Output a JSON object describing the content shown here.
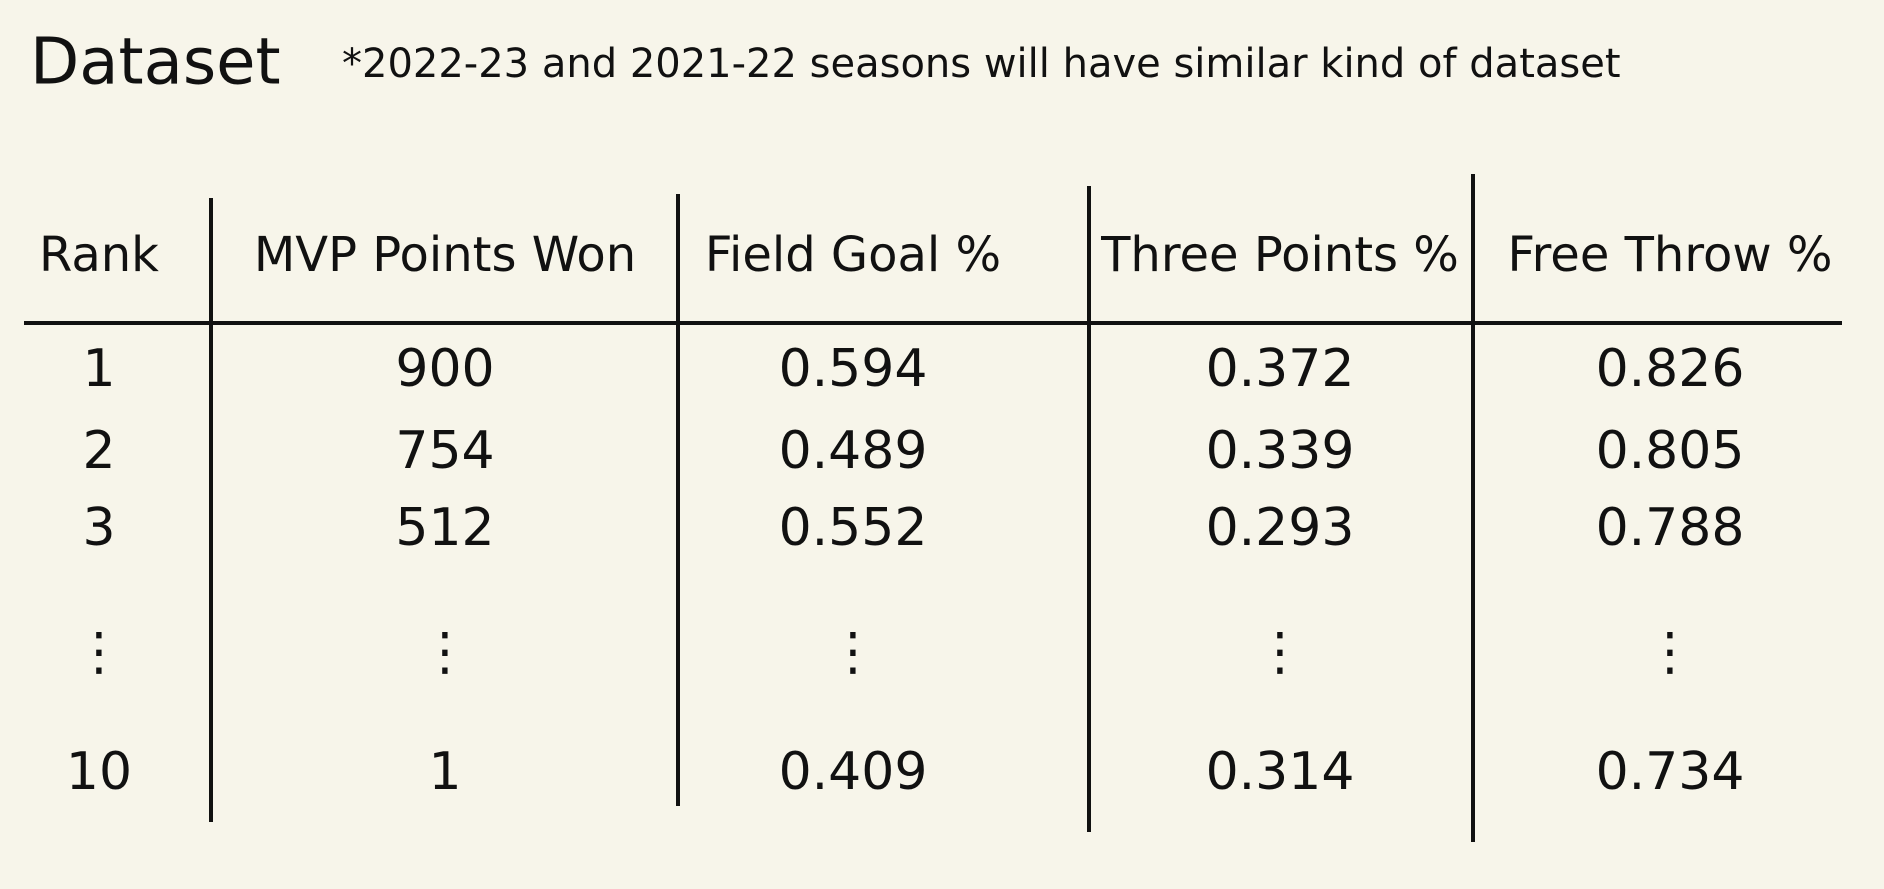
{
  "header": {
    "title": "Dataset",
    "note": "*2022-23 and 2021-22 seasons will have similar kind of dataset"
  },
  "table": {
    "columns": [
      "Rank",
      "MVP Points Won",
      "Field Goal %",
      "Three Points %",
      "Free Throw %"
    ],
    "rows": [
      [
        "1",
        "900",
        "0.594",
        "0.372",
        "0.826"
      ],
      [
        "2",
        "754",
        "0.489",
        "0.339",
        "0.805"
      ],
      [
        "3",
        "512",
        "0.552",
        "0.293",
        "0.788"
      ],
      [
        "⋮",
        "⋮",
        "⋮",
        "⋮",
        "⋮"
      ],
      [
        "10",
        "1",
        "0.409",
        "0.314",
        "0.734"
      ]
    ]
  }
}
